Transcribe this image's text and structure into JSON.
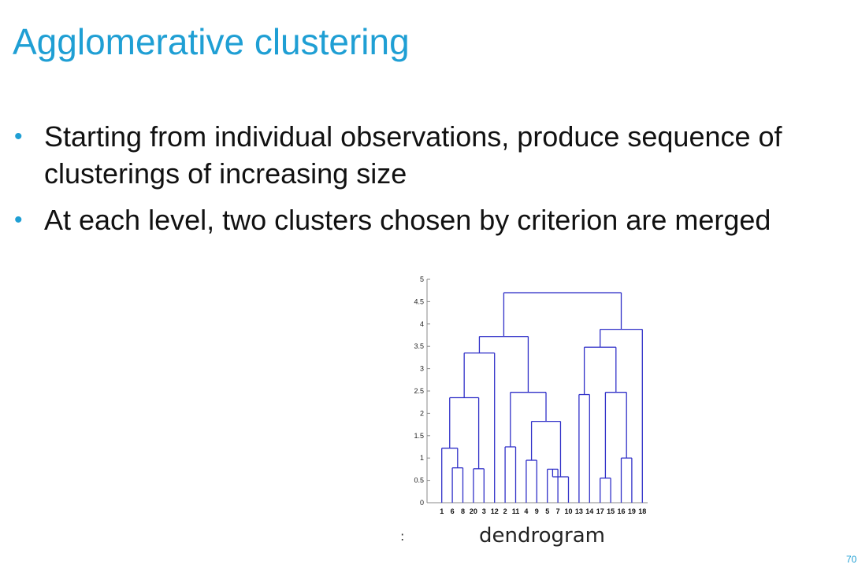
{
  "slide": {
    "title": "Agglomerative clustering",
    "bullets": [
      "Starting from individual observations, produce sequence of clusterings of increasing size",
      "At each level, two clusters chosen by criterion are merged"
    ],
    "caption": "dendrogram",
    "caption_mark": ":",
    "page_number": "70",
    "accent_color": "#1f9fd4",
    "line_color": "#3030c8"
  },
  "chart_data": {
    "type": "dendrogram",
    "title": "",
    "xlabel": "",
    "ylabel": "",
    "ylim": [
      0,
      5
    ],
    "yticks": [
      "0",
      "0.5",
      "1",
      "1.5",
      "2",
      "2.5",
      "3",
      "3.5",
      "4",
      "4.5",
      "5"
    ],
    "leaf_order": [
      "1",
      "6",
      "8",
      "20",
      "3",
      "12",
      "2",
      "11",
      "4",
      "9",
      "5",
      "7",
      "10",
      "13",
      "14",
      "17",
      "15",
      "16",
      "19",
      "18"
    ],
    "merges": [
      {
        "children": [
          "6",
          "8"
        ],
        "height": 0.78
      },
      {
        "children": [
          "1",
          "6+8"
        ],
        "height": 1.22
      },
      {
        "children": [
          "20",
          "3"
        ],
        "height": 0.76
      },
      {
        "children": [
          "1,6,8",
          "20,3"
        ],
        "height": 2.35
      },
      {
        "children": [
          "2",
          "11"
        ],
        "height": 1.25
      },
      {
        "children": [
          "4",
          "9"
        ],
        "height": 0.95
      },
      {
        "children": [
          "5",
          "7"
        ],
        "height": 0.75
      },
      {
        "children": [
          "5+7",
          "10"
        ],
        "height": 0.58
      },
      {
        "children": [
          "4,9",
          "5,7,10"
        ],
        "height": 1.82
      },
      {
        "children": [
          "2,11",
          "4,9,5,7,10"
        ],
        "height": 2.47
      },
      {
        "children": [
          "12",
          "1,6,8,20,3"
        ],
        "height": 3.35
      },
      {
        "children": [
          "left-a",
          "left-b"
        ],
        "height": 3.72
      },
      {
        "children": [
          "13",
          "14"
        ],
        "height": 2.42
      },
      {
        "children": [
          "17",
          "15"
        ],
        "height": 0.55
      },
      {
        "children": [
          "16",
          "19"
        ],
        "height": 1.0
      },
      {
        "children": [
          "17,15",
          "16,19"
        ],
        "height": 2.47
      },
      {
        "children": [
          "13,14",
          "right-b"
        ],
        "height": 3.48
      },
      {
        "children": [
          "right-a",
          "18"
        ],
        "height": 3.88
      },
      {
        "children": [
          "left",
          "right"
        ],
        "height": 4.7
      }
    ]
  }
}
